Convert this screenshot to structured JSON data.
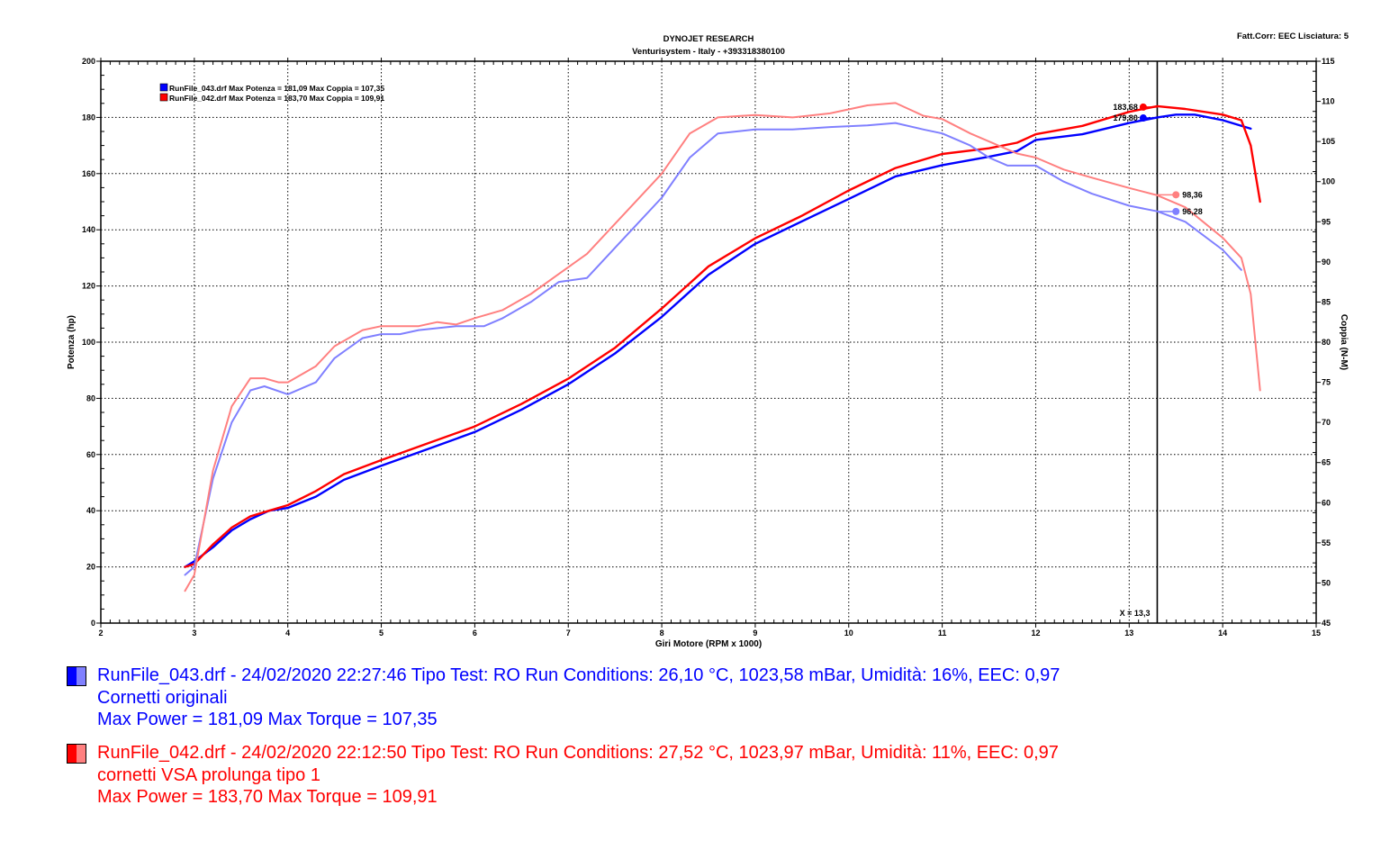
{
  "header": {
    "title": "DYNOJET RESEARCH",
    "subtitle": "Venturisystem - Italy - +393318380100",
    "corr_info": "Fatt.Corr: EEC  Lisciatura: 5"
  },
  "chart_data": {
    "type": "line",
    "xlabel": "Giri Motore (RPM x 1000)",
    "ylabel_left": "Potenza (hp)",
    "ylabel_right": "Coppia (N-M)",
    "xlim": [
      2,
      15
    ],
    "ylim_left": [
      0,
      200
    ],
    "ylim_right": [
      45,
      115
    ],
    "x_ticks": [
      2,
      3,
      4,
      5,
      6,
      7,
      8,
      9,
      10,
      11,
      12,
      13,
      14,
      15
    ],
    "y_ticks_left": [
      0,
      20,
      40,
      60,
      80,
      100,
      120,
      140,
      160,
      180,
      200
    ],
    "y_ticks_right": [
      45,
      50,
      55,
      60,
      65,
      70,
      75,
      80,
      85,
      90,
      95,
      100,
      105,
      110,
      115
    ],
    "grid": true,
    "cursor": {
      "x": 13.3,
      "label": "X = 13,3"
    },
    "inner_legend": [
      {
        "text": "RunFile_043.drf Max Potenza = 181,09    Max Coppia = 107,35",
        "color": "#0000ff"
      },
      {
        "text": "RunFile_042.drf Max Potenza = 183,70    Max Coppia = 109,91",
        "color": "#ff0000"
      }
    ],
    "series": [
      {
        "name": "RunFile_043.drf",
        "kind": "power",
        "axis": "left",
        "color": "#0000ff",
        "x": [
          2.9,
          3.0,
          3.2,
          3.4,
          3.6,
          3.8,
          4.0,
          4.3,
          4.6,
          5.0,
          5.5,
          6.0,
          6.5,
          7.0,
          7.5,
          8.0,
          8.5,
          9.0,
          9.5,
          10.0,
          10.5,
          11.0,
          11.5,
          11.8,
          12.0,
          12.5,
          13.0,
          13.3,
          13.5,
          13.7,
          14.0,
          14.3
        ],
        "y": [
          20,
          22,
          27,
          33,
          37,
          40,
          41,
          45,
          51,
          56,
          62,
          68,
          76,
          85,
          96,
          109,
          124,
          135,
          143,
          151,
          159,
          163,
          166,
          168,
          172,
          174,
          178,
          180,
          181,
          181,
          179,
          176
        ]
      },
      {
        "name": "RunFile_042.drf",
        "kind": "power",
        "axis": "left",
        "color": "#ff0000",
        "x": [
          2.9,
          3.0,
          3.2,
          3.4,
          3.6,
          3.8,
          4.0,
          4.3,
          4.6,
          5.0,
          5.5,
          6.0,
          6.5,
          7.0,
          7.5,
          8.0,
          8.5,
          9.0,
          9.5,
          10.0,
          10.5,
          11.0,
          11.5,
          11.8,
          12.0,
          12.5,
          13.0,
          13.3,
          13.6,
          14.0,
          14.2,
          14.3,
          14.4
        ],
        "y": [
          20,
          21,
          28,
          34,
          38,
          40,
          42,
          47,
          53,
          58,
          64,
          70,
          78,
          87,
          98,
          112,
          127,
          137,
          145,
          154,
          162,
          167,
          169,
          171,
          174,
          177,
          182,
          184,
          183,
          181,
          179,
          170,
          150
        ]
      },
      {
        "name": "RunFile_043.drf",
        "kind": "torque",
        "axis": "right",
        "color": "#8080ff",
        "x": [
          2.9,
          3.0,
          3.2,
          3.4,
          3.6,
          3.75,
          4.0,
          4.3,
          4.5,
          4.8,
          5.0,
          5.2,
          5.4,
          5.8,
          6.1,
          6.3,
          6.6,
          6.9,
          7.2,
          7.6,
          8.0,
          8.3,
          8.6,
          9.0,
          9.4,
          9.8,
          10.2,
          10.5,
          10.8,
          11.0,
          11.3,
          11.5,
          11.7,
          12.0,
          12.3,
          12.6,
          13.0,
          13.3,
          13.6,
          14.0,
          14.2
        ],
        "y": [
          51,
          52,
          63,
          70,
          74,
          74.5,
          73.5,
          75,
          78,
          80.5,
          81,
          81,
          81.5,
          82,
          82,
          83,
          85,
          87.5,
          88,
          93,
          98,
          103,
          106,
          106.5,
          106.5,
          106.8,
          107,
          107.3,
          106.5,
          106,
          104.5,
          103,
          102,
          102,
          100,
          98.5,
          97,
          96.3,
          95,
          91.5,
          89
        ]
      },
      {
        "name": "RunFile_042.drf",
        "kind": "torque",
        "axis": "right",
        "color": "#ff8080",
        "x": [
          2.9,
          3.0,
          3.2,
          3.4,
          3.6,
          3.75,
          3.9,
          4.0,
          4.3,
          4.5,
          4.8,
          5.0,
          5.2,
          5.4,
          5.6,
          5.8,
          6.0,
          6.3,
          6.6,
          6.9,
          7.2,
          7.6,
          8.0,
          8.3,
          8.6,
          9.0,
          9.4,
          9.8,
          10.2,
          10.5,
          10.8,
          11.0,
          11.3,
          11.5,
          11.8,
          12.0,
          12.3,
          12.6,
          13.0,
          13.3,
          13.6,
          14.0,
          14.2,
          14.3,
          14.4
        ],
        "y": [
          49,
          51,
          64,
          72,
          75.5,
          75.5,
          75,
          75,
          77,
          79.5,
          81.5,
          82,
          82,
          82,
          82.5,
          82.2,
          83,
          84,
          86,
          88.5,
          91,
          96,
          101,
          106,
          108,
          108.3,
          108,
          108.5,
          109.5,
          109.8,
          108.2,
          107.8,
          106,
          105,
          103.5,
          103,
          101.5,
          100.5,
          99.2,
          98.3,
          96.8,
          93,
          90.5,
          86,
          74
        ]
      }
    ],
    "markers": [
      {
        "label": "183,68",
        "x": 13.15,
        "y": 183.68,
        "axis": "left",
        "color": "#ff0000",
        "label_side": "left"
      },
      {
        "label": "179,80",
        "x": 13.15,
        "y": 179.8,
        "axis": "left",
        "color": "#0000ff",
        "label_side": "left"
      },
      {
        "label": "98,36",
        "x": 13.5,
        "y": 98.36,
        "axis": "right",
        "color": "#ff8080",
        "label_side": "right"
      },
      {
        "label": "96,28",
        "x": 13.5,
        "y": 96.28,
        "axis": "right",
        "color": "#8080ff",
        "label_side": "right"
      }
    ]
  },
  "legend": {
    "runs": [
      {
        "line1": "RunFile_043.drf - 24/02/2020 22:27:46  Tipo Test: RO  Run Conditions: 26,10 °C, 1023,58 mBar,  Umidità: 16%, EEC: 0,97",
        "line2": "Cornetti originali",
        "line3": "Max Power = 181,09  Max Torque = 107,35",
        "text_color": "#0000ff",
        "swatch_dark": "#0000ff",
        "swatch_light": "#8080ff"
      },
      {
        "line1": "RunFile_042.drf - 24/02/2020 22:12:50  Tipo Test: RO  Run Conditions: 27,52 °C, 1023,97 mBar,  Umidità: 11%, EEC: 0,97",
        "line2": "cornetti VSA  prolunga tipo 1",
        "line3": "Max Power = 183,70  Max Torque = 109,91",
        "text_color": "#ff0000",
        "swatch_dark": "#ff0000",
        "swatch_light": "#ff8080"
      }
    ]
  }
}
